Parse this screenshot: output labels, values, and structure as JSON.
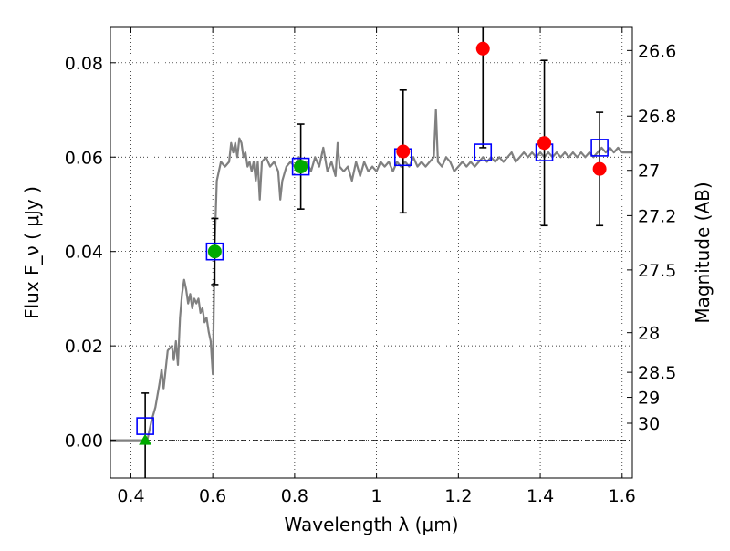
{
  "chart_data": {
    "type": "scatter",
    "xlabel": "Wavelength  λ (μm)",
    "ylabel": "Flux  F_ν  ( μJy )",
    "ylabel_right": "Magnitude (AB)",
    "xlim": [
      0.35,
      1.625
    ],
    "ylim": [
      -0.008,
      0.0875
    ],
    "grid": true,
    "x_ticks": [
      0.4,
      0.6,
      0.8,
      1.0,
      1.2,
      1.4,
      1.6
    ],
    "x_tick_labels": [
      "0.4",
      "0.6",
      "0.8",
      "1",
      "1.2",
      "1.4",
      "1.6"
    ],
    "y_ticks": [
      0.0,
      0.02,
      0.04,
      0.06,
      0.08
    ],
    "y_tick_labels": [
      "0.00",
      "0.02",
      "0.04",
      "0.06",
      "0.08"
    ],
    "right_ticks": [
      {
        "label": "26.6",
        "flux": 0.0826
      },
      {
        "label": "26.8",
        "flux": 0.0687
      },
      {
        "label": "27",
        "flux": 0.0572
      },
      {
        "label": "27.2",
        "flux": 0.0476
      },
      {
        "label": "27.5",
        "flux": 0.0361
      },
      {
        "label": "28",
        "flux": 0.0228
      },
      {
        "label": "28.5",
        "flux": 0.0144
      },
      {
        "label": "29",
        "flux": 0.0091
      },
      {
        "label": "30",
        "flux": 0.0036
      }
    ],
    "zero_line": 0.0,
    "model_spectrum": {
      "color": "#808080",
      "points": [
        [
          0.35,
          0.0
        ],
        [
          0.44,
          0.0
        ],
        [
          0.45,
          0.004
        ],
        [
          0.46,
          0.007
        ],
        [
          0.47,
          0.012
        ],
        [
          0.475,
          0.015
        ],
        [
          0.48,
          0.011
        ],
        [
          0.49,
          0.019
        ],
        [
          0.5,
          0.02
        ],
        [
          0.505,
          0.017
        ],
        [
          0.51,
          0.021
        ],
        [
          0.515,
          0.016
        ],
        [
          0.52,
          0.026
        ],
        [
          0.525,
          0.031
        ],
        [
          0.53,
          0.034
        ],
        [
          0.535,
          0.032
        ],
        [
          0.54,
          0.029
        ],
        [
          0.545,
          0.031
        ],
        [
          0.55,
          0.028
        ],
        [
          0.555,
          0.03
        ],
        [
          0.56,
          0.029
        ],
        [
          0.565,
          0.03
        ],
        [
          0.57,
          0.027
        ],
        [
          0.575,
          0.028
        ],
        [
          0.58,
          0.025
        ],
        [
          0.585,
          0.026
        ],
        [
          0.59,
          0.023
        ],
        [
          0.595,
          0.021
        ],
        [
          0.6,
          0.014
        ],
        [
          0.605,
          0.042
        ],
        [
          0.61,
          0.055
        ],
        [
          0.62,
          0.059
        ],
        [
          0.63,
          0.058
        ],
        [
          0.64,
          0.059
        ],
        [
          0.645,
          0.063
        ],
        [
          0.65,
          0.061
        ],
        [
          0.655,
          0.063
        ],
        [
          0.66,
          0.06
        ],
        [
          0.665,
          0.064
        ],
        [
          0.67,
          0.063
        ],
        [
          0.675,
          0.06
        ],
        [
          0.68,
          0.061
        ],
        [
          0.685,
          0.058
        ],
        [
          0.69,
          0.059
        ],
        [
          0.695,
          0.057
        ],
        [
          0.7,
          0.059
        ],
        [
          0.705,
          0.055
        ],
        [
          0.71,
          0.059
        ],
        [
          0.715,
          0.051
        ],
        [
          0.72,
          0.059
        ],
        [
          0.73,
          0.06
        ],
        [
          0.74,
          0.058
        ],
        [
          0.75,
          0.059
        ],
        [
          0.76,
          0.057
        ],
        [
          0.765,
          0.051
        ],
        [
          0.77,
          0.055
        ],
        [
          0.78,
          0.058
        ],
        [
          0.79,
          0.059
        ],
        [
          0.8,
          0.058
        ],
        [
          0.81,
          0.06
        ],
        [
          0.82,
          0.058
        ],
        [
          0.83,
          0.059
        ],
        [
          0.84,
          0.057
        ],
        [
          0.85,
          0.06
        ],
        [
          0.86,
          0.058
        ],
        [
          0.87,
          0.062
        ],
        [
          0.88,
          0.057
        ],
        [
          0.89,
          0.059
        ],
        [
          0.9,
          0.056
        ],
        [
          0.905,
          0.063
        ],
        [
          0.91,
          0.058
        ],
        [
          0.92,
          0.057
        ],
        [
          0.93,
          0.058
        ],
        [
          0.94,
          0.055
        ],
        [
          0.95,
          0.059
        ],
        [
          0.96,
          0.056
        ],
        [
          0.97,
          0.059
        ],
        [
          0.98,
          0.057
        ],
        [
          0.99,
          0.058
        ],
        [
          1.0,
          0.057
        ],
        [
          1.01,
          0.059
        ],
        [
          1.02,
          0.058
        ],
        [
          1.03,
          0.059
        ],
        [
          1.04,
          0.057
        ],
        [
          1.05,
          0.059
        ],
        [
          1.06,
          0.058
        ],
        [
          1.07,
          0.059
        ],
        [
          1.08,
          0.058
        ],
        [
          1.09,
          0.06
        ],
        [
          1.1,
          0.058
        ],
        [
          1.11,
          0.059
        ],
        [
          1.12,
          0.058
        ],
        [
          1.13,
          0.059
        ],
        [
          1.14,
          0.06
        ],
        [
          1.145,
          0.07
        ],
        [
          1.15,
          0.059
        ],
        [
          1.16,
          0.058
        ],
        [
          1.17,
          0.06
        ],
        [
          1.18,
          0.059
        ],
        [
          1.19,
          0.057
        ],
        [
          1.2,
          0.058
        ],
        [
          1.21,
          0.059
        ],
        [
          1.22,
          0.058
        ],
        [
          1.23,
          0.059
        ],
        [
          1.24,
          0.058
        ],
        [
          1.25,
          0.059
        ],
        [
          1.26,
          0.06
        ],
        [
          1.27,
          0.059
        ],
        [
          1.28,
          0.06
        ],
        [
          1.29,
          0.059
        ],
        [
          1.3,
          0.06
        ],
        [
          1.31,
          0.059
        ],
        [
          1.32,
          0.06
        ],
        [
          1.33,
          0.061
        ],
        [
          1.34,
          0.059
        ],
        [
          1.35,
          0.06
        ],
        [
          1.36,
          0.061
        ],
        [
          1.37,
          0.06
        ],
        [
          1.38,
          0.061
        ],
        [
          1.39,
          0.06
        ],
        [
          1.4,
          0.061
        ],
        [
          1.41,
          0.06
        ],
        [
          1.42,
          0.061
        ],
        [
          1.43,
          0.06
        ],
        [
          1.44,
          0.061
        ],
        [
          1.45,
          0.06
        ],
        [
          1.46,
          0.061
        ],
        [
          1.47,
          0.06
        ],
        [
          1.48,
          0.061
        ],
        [
          1.49,
          0.06
        ],
        [
          1.5,
          0.061
        ],
        [
          1.51,
          0.06
        ],
        [
          1.52,
          0.061
        ],
        [
          1.53,
          0.06
        ],
        [
          1.54,
          0.061
        ],
        [
          1.55,
          0.062
        ],
        [
          1.56,
          0.061
        ],
        [
          1.57,
          0.062
        ],
        [
          1.58,
          0.061
        ],
        [
          1.59,
          0.062
        ],
        [
          1.6,
          0.061
        ],
        [
          1.625,
          0.061
        ]
      ]
    },
    "model_photometry": {
      "marker": "open-square",
      "color": "#0000ff",
      "points": [
        [
          0.435,
          0.003
        ],
        [
          0.605,
          0.04
        ],
        [
          0.815,
          0.058
        ],
        [
          1.065,
          0.06
        ],
        [
          1.26,
          0.061
        ],
        [
          1.41,
          0.061
        ],
        [
          1.545,
          0.062
        ]
      ]
    },
    "observed": [
      {
        "x": 0.435,
        "y": 0.0,
        "err": 0.01,
        "marker": "triangle",
        "color": "#00aa00"
      },
      {
        "x": 0.605,
        "y": 0.04,
        "err": 0.007,
        "marker": "circle",
        "color": "#00aa00"
      },
      {
        "x": 0.815,
        "y": 0.058,
        "err": 0.009,
        "marker": "circle",
        "color": "#00aa00"
      },
      {
        "x": 1.065,
        "y": 0.0612,
        "err": 0.013,
        "marker": "circle",
        "color": "#ff0000"
      },
      {
        "x": 1.26,
        "y": 0.083,
        "err": 0.021,
        "marker": "circle",
        "color": "#ff0000"
      },
      {
        "x": 1.41,
        "y": 0.063,
        "err": 0.0175,
        "marker": "circle",
        "color": "#ff0000"
      },
      {
        "x": 1.545,
        "y": 0.0575,
        "err": 0.012,
        "marker": "circle",
        "color": "#ff0000"
      }
    ]
  }
}
